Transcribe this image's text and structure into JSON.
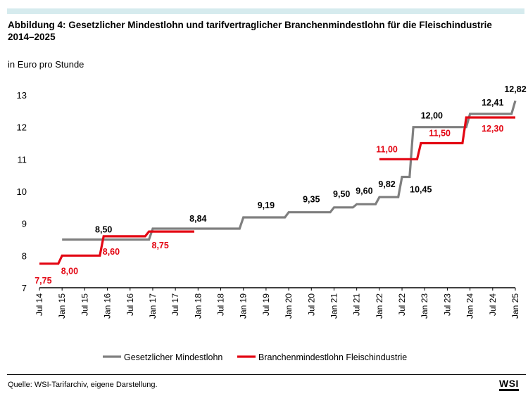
{
  "title": "Abbildung 4: Gesetzlicher Mindestlohn und tarifvertraglicher Branchenmindestlohn für die Fleischindustrie 2014–2025",
  "subtitle": "in Euro pro Stunde",
  "source": "Quelle: WSI-Tarifarchiv, eigene Darstellung.",
  "logo": "WSI",
  "colors": {
    "gesetzlich": "#7f7f7f",
    "branche": "#e30613",
    "topbar": "#d6ebee"
  },
  "chart_data": {
    "type": "line",
    "ylim": [
      7,
      13
    ],
    "yticks": [
      7,
      8,
      9,
      10,
      11,
      12,
      13
    ],
    "xlim": [
      "2014-07",
      "2025-01"
    ],
    "categories": [
      "Jul 14",
      "Jan 15",
      "Jul 15",
      "Jan 16",
      "Jul 16",
      "Jan 17",
      "Jul 17",
      "Jan 18",
      "Jul 18",
      "Jan 19",
      "Jul 19",
      "Jan 20",
      "Jul 20",
      "Jan 21",
      "Jul 21",
      "Jan 22",
      "Jul 22",
      "Jan 23",
      "Jul 23",
      "Jan 24",
      "Jul 24",
      "Jan 25"
    ],
    "legend_position": "bottom",
    "grid": false,
    "series": [
      {
        "name": "Gesetzlicher Mindestlohn",
        "color": "#7f7f7f",
        "points": [
          [
            "2015-01",
            8.5
          ],
          [
            "2016-12",
            8.5
          ],
          [
            "2017-01",
            8.84
          ],
          [
            "2018-12",
            8.84
          ],
          [
            "2019-01",
            9.19
          ],
          [
            "2019-12",
            9.19
          ],
          [
            "2020-01",
            9.35
          ],
          [
            "2020-12",
            9.35
          ],
          [
            "2021-01",
            9.5
          ],
          [
            "2021-06",
            9.5
          ],
          [
            "2021-07",
            9.6
          ],
          [
            "2021-12",
            9.6
          ],
          [
            "2022-01",
            9.82
          ],
          [
            "2022-06",
            9.82
          ],
          [
            "2022-07",
            10.45
          ],
          [
            "2022-09",
            10.45
          ],
          [
            "2022-10",
            12.0
          ],
          [
            "2023-12",
            12.0
          ],
          [
            "2024-01",
            12.41
          ],
          [
            "2024-12",
            12.41
          ],
          [
            "2025-01",
            12.82
          ]
        ],
        "labels": [
          {
            "text": "8,50",
            "x": "2015-12",
            "y": 8.5
          },
          {
            "text": "8,84",
            "x": "2018-01",
            "y": 8.84
          },
          {
            "text": "9,19",
            "x": "2019-07",
            "y": 9.19
          },
          {
            "text": "9,35",
            "x": "2020-07",
            "y": 9.35
          },
          {
            "text": "9,50",
            "x": "2021-03",
            "y": 9.5
          },
          {
            "text": "9,60",
            "x": "2021-09",
            "y": 9.6
          },
          {
            "text": "9,82",
            "x": "2022-03",
            "y": 9.82
          },
          {
            "text": "10,45",
            "x": "2022-09",
            "y": 10.45
          },
          {
            "text": "12,00",
            "x": "2023-04",
            "y": 12.0
          },
          {
            "text": "12,41",
            "x": "2024-07",
            "y": 12.41
          },
          {
            "text": "12,82",
            "x": "2025-01",
            "y": 12.82
          }
        ]
      },
      {
        "name": "Branchenmindestlohn Fleischindustrie",
        "color": "#e30613",
        "points": [
          [
            "2014-07",
            7.75
          ],
          [
            "2014-12",
            7.75
          ],
          [
            "2015-01",
            8.0
          ],
          [
            "2015-11",
            8.0
          ],
          [
            "2015-12",
            8.6
          ],
          [
            "2016-11",
            8.6
          ],
          [
            "2016-12",
            8.75
          ],
          [
            "2017-12",
            8.75
          ],
          null,
          [
            "2022-01",
            11.0
          ],
          [
            "2022-11",
            11.0
          ],
          [
            "2022-12",
            11.5
          ],
          [
            "2023-11",
            11.5
          ],
          [
            "2023-12",
            12.3
          ],
          [
            "2025-01",
            12.3
          ]
        ],
        "labels": [
          {
            "text": "7,75",
            "x": "2014-08",
            "y": 7.75
          },
          {
            "text": "8,00",
            "x": "2015-03",
            "y": 8.0
          },
          {
            "text": "8,60",
            "x": "2016-02",
            "y": 8.6
          },
          {
            "text": "8,75",
            "x": "2017-03",
            "y": 8.75
          },
          {
            "text": "11,00",
            "x": "2022-03",
            "y": 11.0
          },
          {
            "text": "11,50",
            "x": "2023-05",
            "y": 11.5
          },
          {
            "text": "12,30",
            "x": "2024-07",
            "y": 12.3
          }
        ]
      }
    ]
  }
}
